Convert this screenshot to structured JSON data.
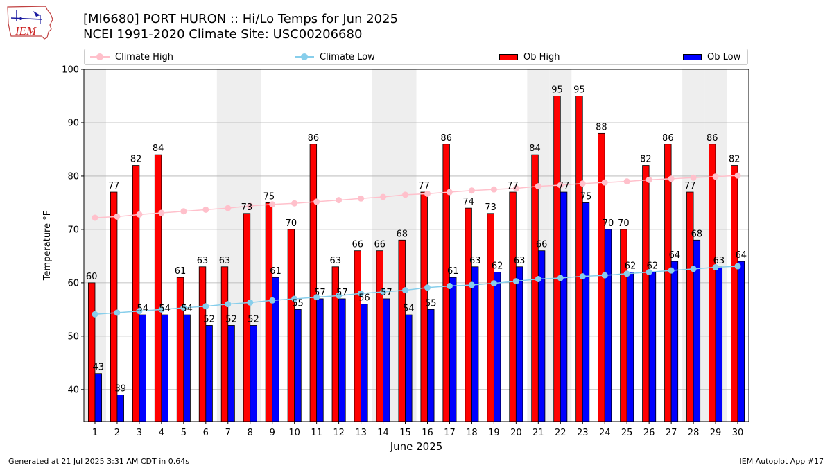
{
  "header": {
    "title_line1": "[MI6680] PORT HURON :: Hi/Lo Temps for Jun 2025",
    "title_line2": "NCEI 1991-2020 Climate Site: USC00206680"
  },
  "logo": {
    "text": "IEM",
    "icon": "iowa-state-outline-logo"
  },
  "footer": {
    "generated": "Generated at 21 Jul 2025 3:31 AM CDT in 0.64s",
    "app": "IEM Autoplot App #17"
  },
  "legend": {
    "climate_high": "Climate High",
    "climate_low": "Climate Low",
    "ob_high": "Ob High",
    "ob_low": "Ob Low",
    "placement": "top"
  },
  "colors": {
    "ob_high": "#ff0000",
    "ob_low": "#0000ff",
    "climate_high": "#ffc0cb",
    "climate_low": "#87ceeb",
    "weekend_band": "#eeeeee",
    "grid": "#b0b0b0"
  },
  "chart_data": {
    "type": "bar",
    "xlabel": "June 2025",
    "ylabel": "Temperature °F",
    "ylim": [
      34,
      100
    ],
    "yticks": [
      40,
      50,
      60,
      70,
      80,
      90,
      100
    ],
    "grid": "horizontal",
    "days": [
      1,
      2,
      3,
      4,
      5,
      6,
      7,
      8,
      9,
      10,
      11,
      12,
      13,
      14,
      15,
      16,
      17,
      18,
      19,
      20,
      21,
      22,
      23,
      24,
      25,
      26,
      27,
      28,
      29,
      30
    ],
    "weekend_days": [
      1,
      7,
      8,
      14,
      15,
      21,
      22,
      28,
      29
    ],
    "series": [
      {
        "name": "Ob High",
        "kind": "bar",
        "values": [
          60,
          77,
          82,
          84,
          61,
          63,
          63,
          73,
          75,
          70,
          86,
          63,
          66,
          66,
          68,
          77,
          86,
          74,
          73,
          77,
          84,
          95,
          95,
          88,
          70,
          82,
          86,
          77,
          86,
          82
        ]
      },
      {
        "name": "Ob Low",
        "kind": "bar",
        "values": [
          43,
          39,
          54,
          54,
          54,
          52,
          52,
          52,
          61,
          55,
          57,
          57,
          56,
          57,
          54,
          55,
          61,
          63,
          62,
          63,
          66,
          77,
          75,
          70,
          62,
          62,
          64,
          68,
          63,
          64
        ]
      },
      {
        "name": "Climate High",
        "kind": "line",
        "values": [
          72.2,
          72.4,
          72.8,
          73.1,
          73.4,
          73.7,
          74.0,
          74.4,
          74.7,
          74.9,
          75.2,
          75.5,
          75.8,
          76.1,
          76.5,
          76.7,
          77.0,
          77.3,
          77.5,
          77.7,
          78.1,
          78.3,
          78.6,
          78.8,
          79.0,
          79.3,
          79.5,
          79.7,
          79.9,
          80.1
        ]
      },
      {
        "name": "Climate Low",
        "kind": "line",
        "values": [
          54.1,
          54.4,
          54.7,
          55.0,
          55.3,
          55.6,
          56.0,
          56.3,
          56.7,
          57.0,
          57.3,
          57.6,
          58.0,
          58.3,
          58.6,
          59.1,
          59.4,
          59.6,
          59.9,
          60.3,
          60.7,
          60.9,
          61.2,
          61.4,
          61.7,
          62.0,
          62.3,
          62.6,
          62.9,
          63.1
        ]
      }
    ]
  }
}
